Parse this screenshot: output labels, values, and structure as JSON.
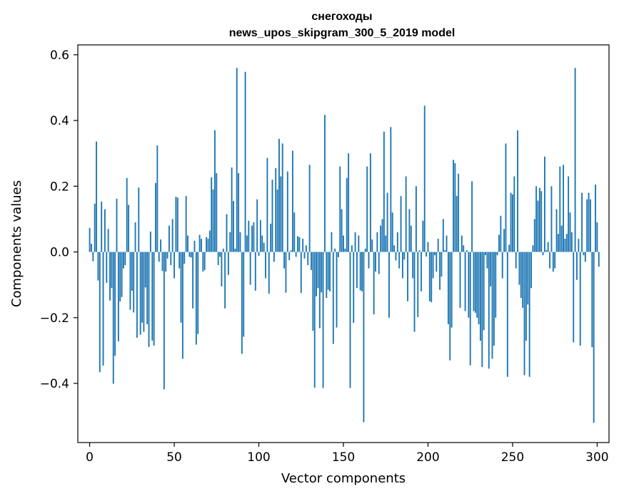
{
  "chart_data": {
    "type": "bar",
    "title": "снегоходы",
    "subtitle": "news_upos_skipgram_300_5_2019 model",
    "xlabel": "Vector components",
    "ylabel": "Components values",
    "xlim": [
      -7,
      307
    ],
    "ylim": [
      -0.58,
      0.63
    ],
    "xticks": [
      0,
      50,
      100,
      150,
      200,
      250,
      300
    ],
    "yticks": [
      -0.4,
      -0.2,
      0.0,
      0.2,
      0.4,
      0.6
    ],
    "ytick_labels": [
      "−0.4",
      "−0.2",
      "0.0",
      "0.2",
      "0.4",
      "0.6"
    ],
    "grid": false,
    "bar_color": "#1f77b4",
    "values": [
      0.073,
      0.025,
      -0.028,
      0.147,
      0.336,
      -0.087,
      -0.366,
      0.153,
      -0.346,
      0.13,
      -0.094,
      0.07,
      -0.148,
      -0.11,
      -0.401,
      -0.316,
      0.162,
      -0.272,
      -0.151,
      -0.137,
      -0.05,
      -0.04,
      0.225,
      0.143,
      -0.176,
      -0.118,
      -0.184,
      0.09,
      -0.261,
      0.196,
      -0.252,
      -0.215,
      -0.243,
      -0.108,
      -0.22,
      -0.289,
      0.062,
      -0.27,
      -0.285,
      0.21,
      0.324,
      -0.03,
      0.038,
      -0.058,
      -0.418,
      -0.06,
      -0.02,
      0.08,
      -0.04,
      0.1,
      -0.08,
      0.168,
      0.165,
      -0.05,
      -0.215,
      -0.325,
      -0.036,
      0.17,
      0.05,
      -0.015,
      -0.017,
      -0.172,
      0.034,
      -0.282,
      -0.25,
      0.052,
      0.04,
      -0.06,
      -0.055,
      0.045,
      0.04,
      0.065,
      0.227,
      0.19,
      0.37,
      0.24,
      -0.04,
      -0.015,
      -0.105,
      0.01,
      -0.172,
      0.115,
      -0.07,
      0.06,
      0.257,
      0.155,
      0.01,
      0.56,
      0.24,
      0.06,
      -0.31,
      -0.258,
      0.548,
      0.05,
      0.095,
      -0.1,
      0.08,
      0.09,
      -0.118,
      0.16,
      -0.012,
      0.097,
      0.05,
      0.028,
      -0.08,
      0.286,
      -0.127,
      0.086,
      0.22,
      -0.03,
      0.255,
      0.19,
      0.344,
      0.23,
      0.33,
      -0.05,
      -0.124,
      0.245,
      -0.025,
      0.005,
      0.308,
      0.12,
      -0.015,
      0.048,
      0.045,
      -0.125,
      0.04,
      -0.02,
      0.02,
      -0.04,
      0.265,
      -0.055,
      -0.24,
      -0.413,
      -0.135,
      -0.11,
      -0.232,
      -0.123,
      -0.414,
      0.417,
      -0.14,
      -0.115,
      -0.12,
      0.06,
      -0.28,
      0.01,
      -0.23,
      -0.016,
      0.26,
      0.13,
      0.05,
      0.01,
      0.225,
      0.3,
      -0.414,
      0.02,
      -0.216,
      0.06,
      -0.11,
      0.05,
      -0.117,
      -0.12,
      -0.518,
      0.01,
      0.26,
      -0.05,
      0.3,
      0.038,
      -0.19,
      -0.06,
      0.06,
      -0.067,
      0.08,
      0.1,
      0.366,
      0.05,
      0.18,
      -0.2,
      0.38,
      0.12,
      0.02,
      -0.026,
      0.06,
      -0.05,
      0.17,
      -0.08,
      -0.023,
      0.23,
      -0.15,
      0.13,
      0.08,
      -0.08,
      -0.243,
      0.2,
      -0.198,
      0.005,
      -0.12,
      0.095,
      0.445,
      -0.014,
      0.03,
      -0.15,
      -0.153,
      -0.08,
      -0.01,
      -0.06,
      0.04,
      -0.115,
      -0.075,
      0.1,
      0.005,
      0.05,
      -0.22,
      -0.33,
      -0.23,
      0.28,
      0.27,
      0.17,
      0.238,
      -0.17,
      0.05,
      0.02,
      -0.18,
      0.005,
      -0.2,
      -0.345,
      0.215,
      -0.18,
      -0.185,
      -0.2,
      -0.22,
      -0.27,
      -0.35,
      -0.238,
      -0.01,
      -0.05,
      -0.355,
      -0.105,
      -0.325,
      -0.285,
      -0.2,
      -0.01,
      0.052,
      0.11,
      -0.08,
      0.07,
      0.33,
      -0.38,
      0.022,
      0.18,
      0.175,
      0.23,
      -0.05,
      0.37,
      -0.1,
      -0.14,
      -0.17,
      -0.375,
      -0.27,
      -0.16,
      -0.38,
      -0.11,
      0.02,
      0.1,
      0.2,
      0.156,
      0.195,
      0.185,
      -0.01,
      0.29,
      0.005,
      0.03,
      -0.05,
      0.2,
      -0.06,
      -0.05,
      0.13,
      0.055,
      0.26,
      0.08,
      0.265,
      0.04,
      0.055,
      0.23,
      0.12,
      0.06,
      -0.275,
      0.56,
      -0.085,
      0.04,
      -0.285,
      0.18,
      -0.01,
      -0.03,
      0.16,
      0.18,
      0.16,
      -0.29,
      -0.52,
      0.205,
      0.09,
      -0.045
    ]
  }
}
